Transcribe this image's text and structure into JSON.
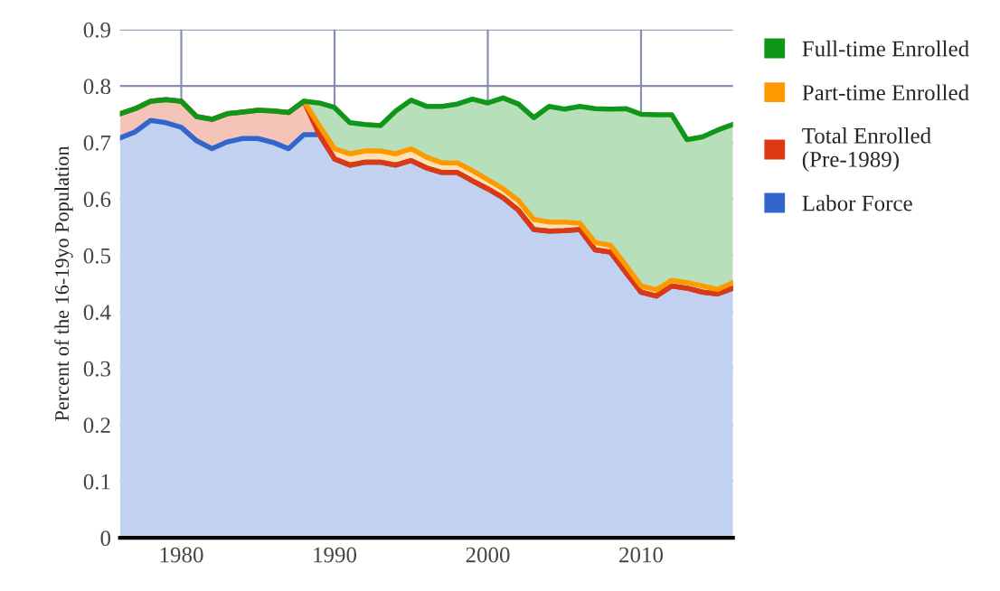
{
  "chart_data": {
    "type": "area",
    "stacked": true,
    "ylabel": "Percent of the 16-19yo Population",
    "x": [
      1976,
      1977,
      1978,
      1979,
      1980,
      1981,
      1982,
      1983,
      1984,
      1985,
      1986,
      1987,
      1988,
      1989,
      1990,
      1991,
      1992,
      1993,
      1994,
      1995,
      1996,
      1997,
      1998,
      1999,
      2000,
      2001,
      2002,
      2003,
      2004,
      2005,
      2006,
      2007,
      2008,
      2009,
      2010,
      2011,
      2012,
      2013,
      2014,
      2015,
      2016
    ],
    "series": [
      {
        "name": "Labor Force",
        "color": "#3366cc",
        "values": [
          0.708,
          0.719,
          0.739,
          0.735,
          0.727,
          0.703,
          0.689,
          0.701,
          0.707,
          0.707,
          0.7,
          0.689,
          0.714,
          0.714,
          0.671,
          0.66,
          0.665,
          0.665,
          0.66,
          0.668,
          0.655,
          0.647,
          0.647,
          0.632,
          0.618,
          0.602,
          0.58,
          0.546,
          0.543,
          0.544,
          0.546,
          0.51,
          0.506,
          0.47,
          0.435,
          0.428,
          0.446,
          0.442,
          0.435,
          0.432,
          0.442
        ]
      },
      {
        "name": "Total Enrolled (Pre-1989)",
        "color": "#dc3912",
        "values": [
          0.043,
          0.041,
          0.034,
          0.041,
          0.046,
          0.043,
          0.052,
          0.05,
          0.047,
          0.05,
          0.056,
          0.064,
          0.059,
          0,
          0,
          0,
          0,
          0,
          0,
          0,
          0,
          0,
          0,
          0,
          0,
          0,
          0,
          0,
          0,
          0,
          0,
          0,
          0,
          0,
          0,
          0,
          0,
          0,
          0,
          0,
          0
        ]
      },
      {
        "name": "Part-time Enrolled",
        "color": "#ff9900",
        "values": [
          null,
          null,
          null,
          null,
          null,
          null,
          null,
          null,
          null,
          null,
          null,
          null,
          0,
          0.016,
          0.018,
          0.02,
          0.02,
          0.02,
          0.02,
          0.021,
          0.019,
          0.017,
          0.017,
          0.018,
          0.016,
          0.016,
          0.017,
          0.018,
          0.016,
          0.015,
          0.011,
          0.013,
          0.012,
          0.013,
          0.011,
          0.011,
          0.01,
          0.01,
          0.011,
          0.008,
          0.01
        ]
      },
      {
        "name": "Full-time Enrolled",
        "color": "#109618",
        "values": [
          0,
          0,
          0,
          0,
          0,
          0,
          0,
          0,
          0,
          0,
          0,
          0,
          0,
          0.04,
          0.073,
          0.055,
          0.047,
          0.045,
          0.076,
          0.086,
          0.09,
          0.1,
          0.104,
          0.127,
          0.136,
          0.161,
          0.171,
          0.18,
          0.205,
          0.2,
          0.207,
          0.237,
          0.241,
          0.277,
          0.304,
          0.31,
          0.293,
          0.253,
          0.264,
          0.282,
          0.28
        ]
      }
    ],
    "xlim": [
      1976,
      2016
    ],
    "xticks": [
      1980,
      1990,
      2000,
      2010
    ],
    "ylim": [
      0,
      0.9
    ],
    "yticks": [
      0,
      0.1,
      0.2,
      0.3,
      0.4,
      0.5,
      0.6,
      0.7,
      0.8,
      0.9
    ],
    "grid": true,
    "legend": "right"
  }
}
